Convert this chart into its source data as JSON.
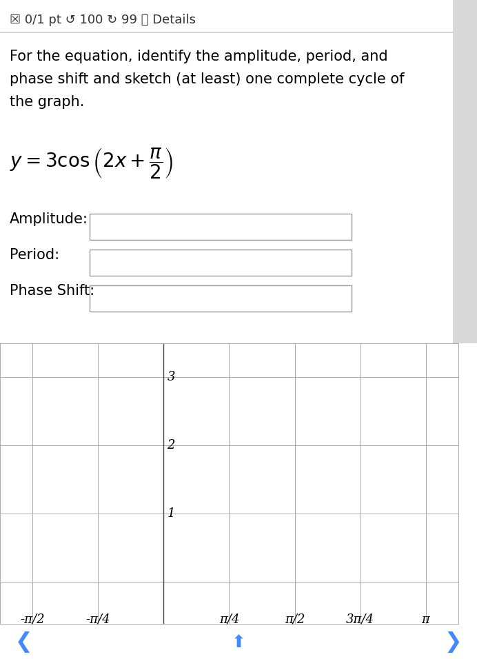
{
  "header_text": "☒ 0/1 pt ↺ 100 ↻ 99 ⓘ Details",
  "instruction_line1": "For the equation, identify the amplitude, period, and",
  "instruction_line2": "phase shift and sketch (at least) one complete cycle of",
  "instruction_line3": "the graph.",
  "label_amplitude": "Amplitude:",
  "label_period": "Period:",
  "label_phase_shift": "Phase Shift:",
  "bg_color": "#ffffff",
  "text_color": "#000000",
  "header_color": "#333333",
  "grid_color": "#aaaaaa",
  "axis_color": "#555555",
  "box_color": "#999999",
  "separator_color": "#cccccc",
  "x_ticks": [
    -1.5707963,
    -0.7853982,
    0.7853982,
    1.5707963,
    2.3561945,
    3.1415927
  ],
  "x_tick_labels": [
    "-π/2",
    "-π/4",
    "π/4",
    "π/2",
    "3π/4",
    "π"
  ],
  "y_ticks": [
    1,
    2,
    3
  ],
  "x_min": -1.963,
  "x_max": 3.534,
  "y_min": -0.62,
  "y_max": 3.5,
  "font_size_header": 13,
  "font_size_instruction": 15,
  "font_size_label": 15,
  "font_size_tick": 13,
  "font_size_equation": 20,
  "sidebar_color": "#d8d8d8",
  "nav_color": "#2a2a2a",
  "nav_arrow_color": "#4488ff"
}
